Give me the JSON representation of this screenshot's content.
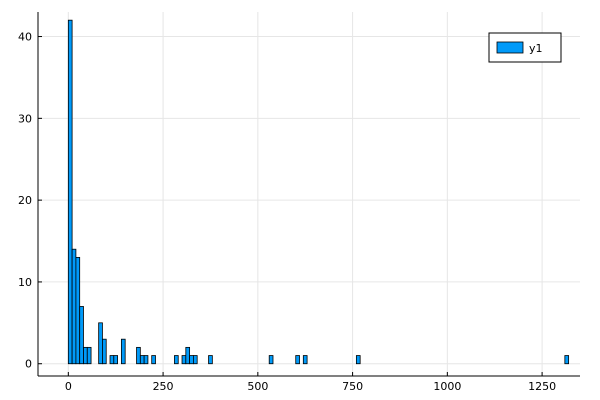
{
  "chart_data": {
    "type": "bar",
    "title": "",
    "xlabel": "",
    "ylabel": "",
    "xlim": [
      -80,
      1350
    ],
    "ylim": [
      -1.5,
      43
    ],
    "xticks": [
      0,
      250,
      500,
      750,
      1000,
      1250
    ],
    "yticks": [
      0,
      10,
      20,
      30,
      40
    ],
    "grid": true,
    "legend_position": "top-right",
    "bin_width": 10,
    "series": [
      {
        "name": "y1",
        "color": "#009AF9",
        "bins": [
          {
            "x": 0,
            "value": 42
          },
          {
            "x": 10,
            "value": 14
          },
          {
            "x": 20,
            "value": 13
          },
          {
            "x": 30,
            "value": 7
          },
          {
            "x": 40,
            "value": 2
          },
          {
            "x": 50,
            "value": 2
          },
          {
            "x": 60,
            "value": 0
          },
          {
            "x": 70,
            "value": 0
          },
          {
            "x": 80,
            "value": 5
          },
          {
            "x": 90,
            "value": 3
          },
          {
            "x": 100,
            "value": 0
          },
          {
            "x": 110,
            "value": 1
          },
          {
            "x": 120,
            "value": 1
          },
          {
            "x": 130,
            "value": 0
          },
          {
            "x": 140,
            "value": 3
          },
          {
            "x": 150,
            "value": 0
          },
          {
            "x": 160,
            "value": 0
          },
          {
            "x": 170,
            "value": 0
          },
          {
            "x": 180,
            "value": 2
          },
          {
            "x": 190,
            "value": 1
          },
          {
            "x": 200,
            "value": 1
          },
          {
            "x": 210,
            "value": 0
          },
          {
            "x": 220,
            "value": 1
          },
          {
            "x": 280,
            "value": 1
          },
          {
            "x": 300,
            "value": 1
          },
          {
            "x": 310,
            "value": 2
          },
          {
            "x": 320,
            "value": 1
          },
          {
            "x": 330,
            "value": 1
          },
          {
            "x": 370,
            "value": 1
          },
          {
            "x": 530,
            "value": 1
          },
          {
            "x": 600,
            "value": 1
          },
          {
            "x": 620,
            "value": 1
          },
          {
            "x": 760,
            "value": 1
          },
          {
            "x": 1310,
            "value": 1
          }
        ]
      }
    ]
  }
}
